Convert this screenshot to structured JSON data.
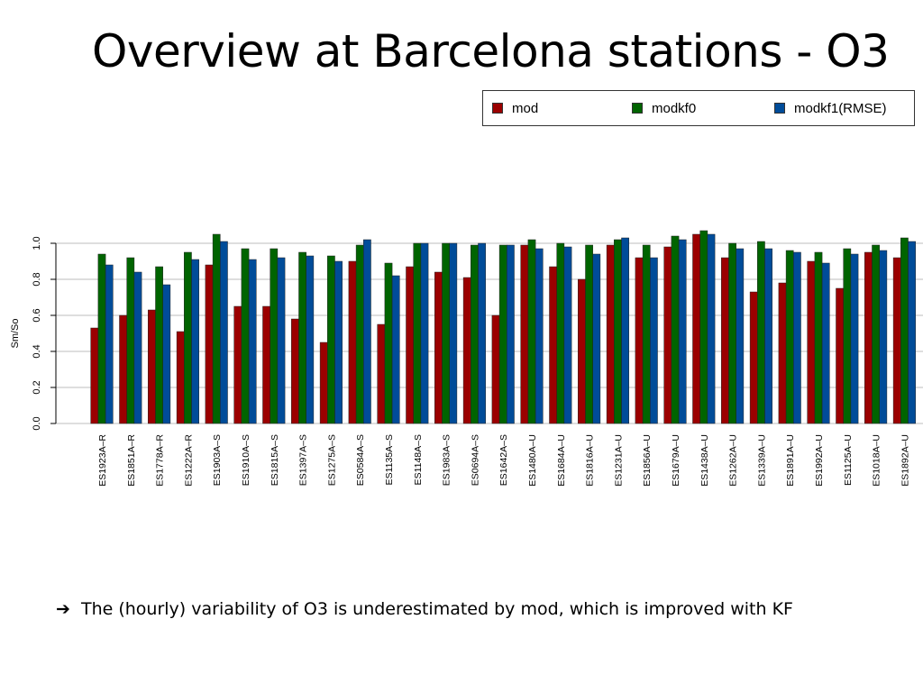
{
  "slide": {
    "title": "Overview at Barcelona stations - O3",
    "note_arrow": "➔",
    "note_text": "The (hourly) variability of O3 is underestimated by mod, which is improved with KF"
  },
  "chart_data": {
    "type": "bar",
    "title": "",
    "xlabel": "",
    "ylabel": "Sm/So",
    "ylim": [
      0,
      1.0
    ],
    "yticks": [
      "0.0",
      "0.2",
      "0.4",
      "0.6",
      "0.8",
      "1.0"
    ],
    "grid": true,
    "legend_position": "top-right",
    "categories": [
      "ES1923A–R",
      "ES1851A–R",
      "ES1778A–R",
      "ES1222A–R",
      "ES1903A–S",
      "ES1910A–S",
      "ES1815A–S",
      "ES1397A–S",
      "ES1275A–S",
      "ES0584A–S",
      "ES1135A–S",
      "ES1148A–S",
      "ES1983A–S",
      "ES0694A–S",
      "ES1642A–S",
      "ES1480A–U",
      "ES1684A–U",
      "ES1816A–U",
      "ES1231A–U",
      "ES1856A–U",
      "ES1679A–U",
      "ES1438A–U",
      "ES1262A–U",
      "ES1339A–U",
      "ES1891A–U",
      "ES1992A–U",
      "ES1125A–U",
      "ES1018A–U",
      "ES1892A–U"
    ],
    "series": [
      {
        "name": "mod",
        "color": "#9b0000",
        "values": [
          0.53,
          0.6,
          0.63,
          0.51,
          0.88,
          0.65,
          0.65,
          0.58,
          0.45,
          0.9,
          0.55,
          0.87,
          0.84,
          0.81,
          0.6,
          0.99,
          0.87,
          0.8,
          0.99,
          0.92,
          0.98,
          1.05,
          0.92,
          0.73,
          0.78,
          0.9,
          0.75,
          0.95,
          0.92
        ]
      },
      {
        "name": "modkf0",
        "color": "#006400",
        "values": [
          0.94,
          0.92,
          0.87,
          0.95,
          1.05,
          0.97,
          0.97,
          0.95,
          0.93,
          0.99,
          0.89,
          1.0,
          1.0,
          0.99,
          0.99,
          1.02,
          1.0,
          0.99,
          1.02,
          0.99,
          1.04,
          1.07,
          1.0,
          1.01,
          0.96,
          0.95,
          0.97,
          0.99,
          1.03
        ]
      },
      {
        "name": "modkf1(RMSE)",
        "color": "#004c99",
        "values": [
          0.88,
          0.84,
          0.77,
          0.91,
          1.01,
          0.91,
          0.92,
          0.93,
          0.9,
          1.02,
          0.82,
          1.0,
          1.0,
          1.0,
          0.99,
          0.97,
          0.98,
          0.94,
          1.03,
          0.92,
          1.02,
          1.05,
          0.97,
          0.97,
          0.95,
          0.89,
          0.94,
          0.96,
          1.01
        ]
      }
    ]
  }
}
